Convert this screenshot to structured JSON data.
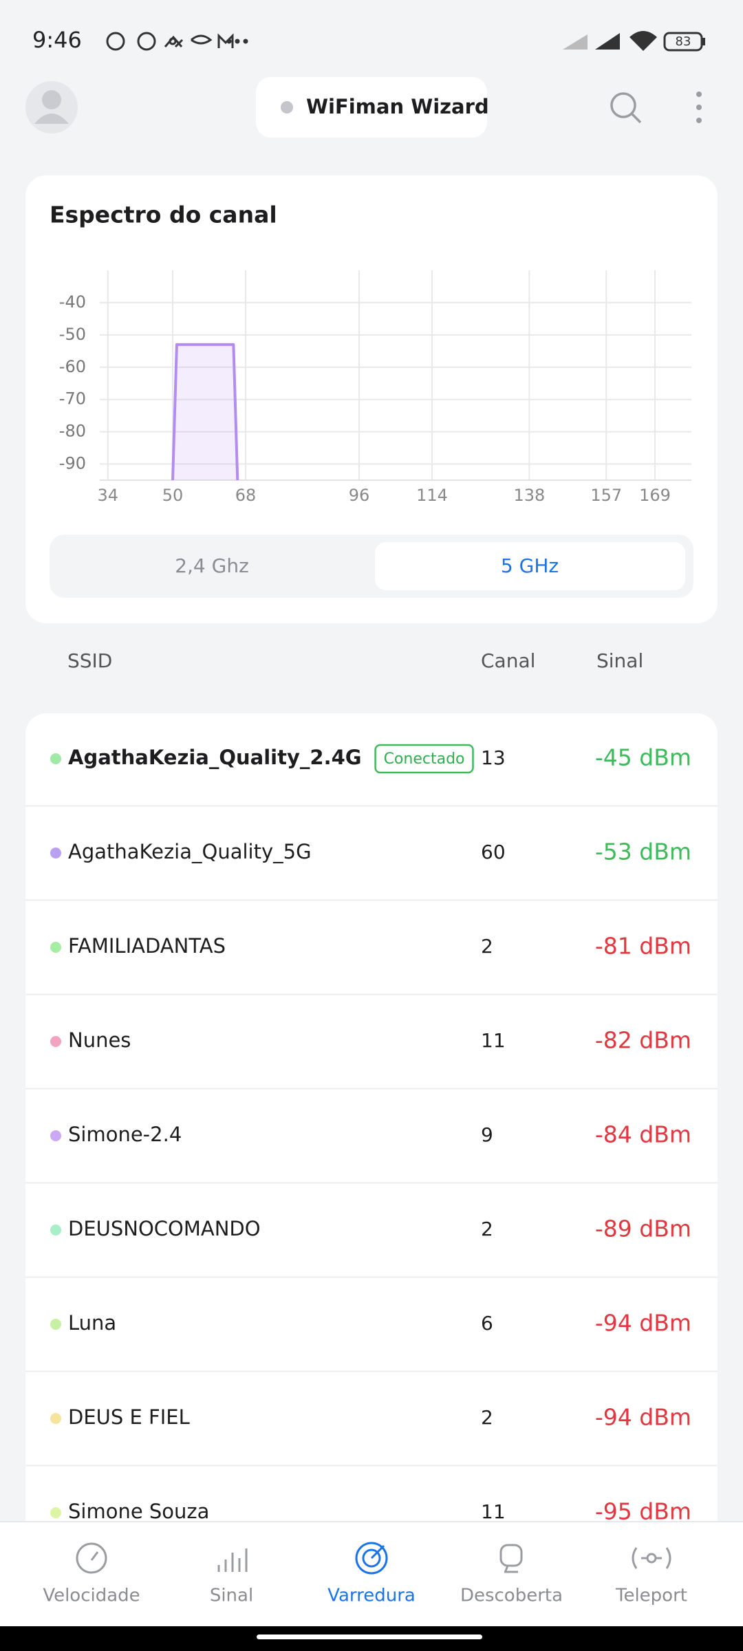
{
  "status_bar": {
    "time": "9:46",
    "battery": "83"
  },
  "header": {
    "title": "WiFiman Wizard"
  },
  "chart_data": {
    "type": "line",
    "title": "Espectro do canal",
    "series": [
      {
        "color": "#b38cf0",
        "x": [
          50,
          51,
          65,
          66
        ],
        "values": [
          -95,
          -53,
          -53,
          -95
        ]
      }
    ],
    "xlim": [
      32,
      178
    ],
    "ylim": [
      -95,
      -30
    ],
    "xticks": [
      34,
      50,
      68,
      96,
      114,
      138,
      157,
      169
    ],
    "yticks": [
      -40,
      -50,
      -60,
      -70,
      -80,
      -90
    ],
    "grid": true
  },
  "band_selector": {
    "options": [
      "2,4 Ghz",
      "5 GHz"
    ],
    "selected": 1
  },
  "table": {
    "columns": [
      "SSID",
      "Canal",
      "Sinal"
    ],
    "rows": [
      {
        "ssid": "AgathaKezia_Quality_2.4G",
        "badge": "Conectado",
        "color": "#9fe8a6",
        "channel": 13,
        "signal": "-45 dBm",
        "signal_color": "#3dbb5a"
      },
      {
        "ssid": "AgathaKezia_Quality_5G",
        "color": "#b9a0f0",
        "channel": 60,
        "signal": "-53 dBm",
        "signal_color": "#3dbb5a"
      },
      {
        "ssid": "FAMILIADANTAS",
        "color": "#a3eea3",
        "channel": 2,
        "signal": "-81 dBm",
        "signal_color": "#e0383e"
      },
      {
        "ssid": "Nunes",
        "color": "#f3a3c0",
        "channel": 11,
        "signal": "-82 dBm",
        "signal_color": "#e0383e"
      },
      {
        "ssid": "Simone-2.4",
        "color": "#caa8f3",
        "channel": 9,
        "signal": "-84 dBm",
        "signal_color": "#e0383e"
      },
      {
        "ssid": "DEUSNOCOMANDO",
        "color": "#a8efc8",
        "channel": 2,
        "signal": "-89 dBm",
        "signal_color": "#e0383e"
      },
      {
        "ssid": "Luna",
        "color": "#c8f0a3",
        "channel": 6,
        "signal": "-94 dBm",
        "signal_color": "#e0383e"
      },
      {
        "ssid": "DEUS E FIEL",
        "color": "#f6e49c",
        "channel": 2,
        "signal": "-94 dBm",
        "signal_color": "#e0383e"
      },
      {
        "ssid": "Simone Souza",
        "color": "#dbf5a3",
        "channel": 11,
        "signal": "-95 dBm",
        "signal_color": "#e0383e"
      }
    ]
  },
  "nav": {
    "items": [
      "Velocidade",
      "Sinal",
      "Varredura",
      "Descoberta",
      "Teleport"
    ],
    "active": 2
  }
}
